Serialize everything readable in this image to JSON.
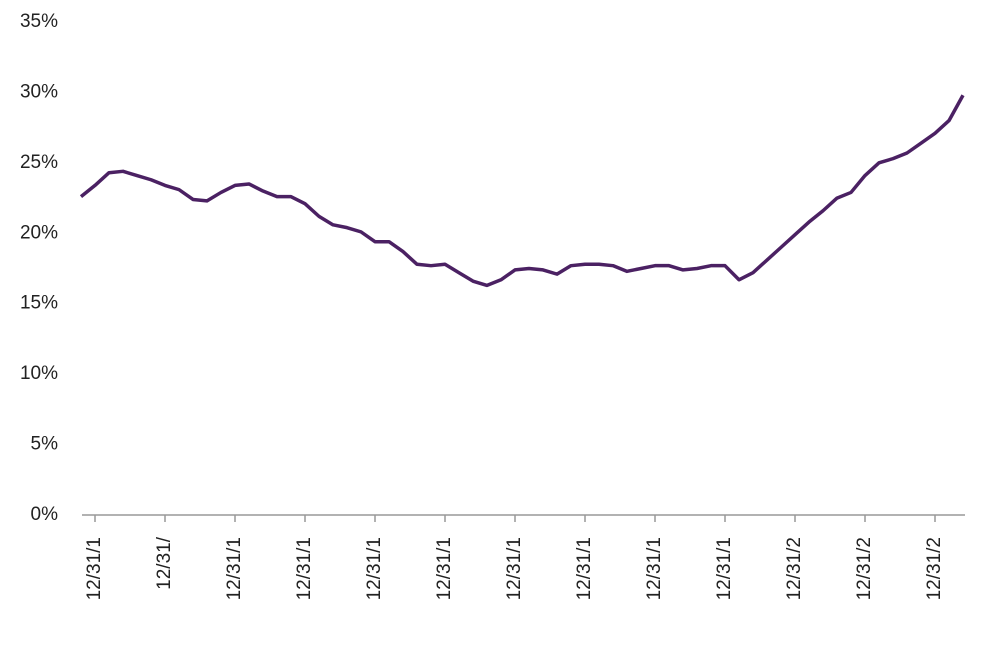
{
  "chart_data": {
    "type": "line",
    "categories": [
      null,
      "12/31/1",
      null,
      null,
      null,
      null,
      "12/31/",
      null,
      null,
      null,
      null,
      "12/31/1",
      null,
      null,
      null,
      null,
      "12/31/1",
      null,
      null,
      null,
      null,
      "12/31/1",
      null,
      null,
      null,
      null,
      "12/31/1",
      null,
      null,
      null,
      null,
      "12/31/1",
      null,
      null,
      null,
      null,
      "12/31/1",
      null,
      null,
      null,
      null,
      "12/31/1",
      null,
      null,
      null,
      null,
      "12/31/1",
      null,
      null,
      null,
      null,
      "12/31/2",
      null,
      null,
      null,
      null,
      "12/31/2",
      null,
      null,
      null,
      null,
      "12/31/2",
      null,
      null
    ],
    "values": [
      22.6,
      23.4,
      24.3,
      24.4,
      24.1,
      23.8,
      23.4,
      23.1,
      22.4,
      22.3,
      22.9,
      23.4,
      23.5,
      23.0,
      22.6,
      22.6,
      22.1,
      21.2,
      20.6,
      20.4,
      20.1,
      19.4,
      19.4,
      18.7,
      17.8,
      17.7,
      17.8,
      17.2,
      16.6,
      16.3,
      16.7,
      17.4,
      17.5,
      17.4,
      17.1,
      17.7,
      17.8,
      17.8,
      17.7,
      17.3,
      17.5,
      17.7,
      17.7,
      17.4,
      17.5,
      17.7,
      17.7,
      16.7,
      17.2,
      18.1,
      19.0,
      19.9,
      20.8,
      21.6,
      22.5,
      22.9,
      24.1,
      25.0,
      25.3,
      25.7,
      26.4,
      27.1,
      28.0,
      29.8
    ],
    "color": "#4b2163",
    "ylim": [
      0,
      35
    ],
    "yticks": [
      {
        "value": 0,
        "label": "0%"
      },
      {
        "value": 5,
        "label": "5%"
      },
      {
        "value": 10,
        "label": "10%"
      },
      {
        "value": 15,
        "label": "15%"
      },
      {
        "value": 20,
        "label": "20%"
      },
      {
        "value": 25,
        "label": "25%"
      },
      {
        "value": 30,
        "label": "30%"
      },
      {
        "value": 35,
        "label": "35%"
      }
    ],
    "grid": false
  }
}
